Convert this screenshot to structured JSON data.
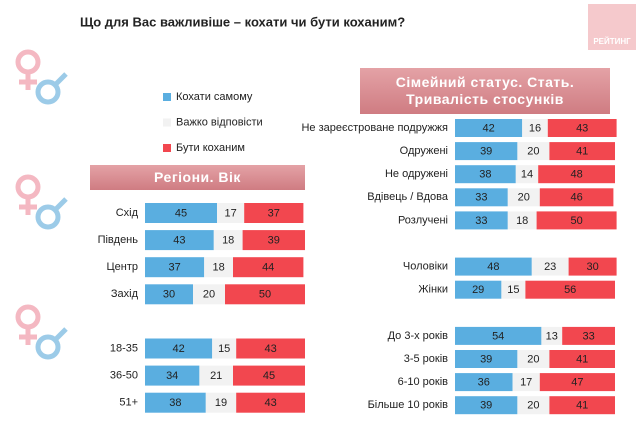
{
  "title": "Що для Вас важливіше – кохати чи бути коханим?",
  "logo": "РЕЙТИНГ",
  "chart_data": [
    {
      "type": "bar",
      "title": "Регіони. Вік",
      "categories": [
        "Схід",
        "Південь",
        "Центр",
        "Захід",
        null,
        "18-35",
        "36-50",
        "51+"
      ],
      "series": [
        {
          "name": "Кохати самому",
          "color": "#5aaee0",
          "values": [
            45,
            43,
            37,
            30,
            null,
            42,
            34,
            38
          ]
        },
        {
          "name": "Важко відповісти",
          "color": "#f2f2f2",
          "values": [
            17,
            18,
            18,
            20,
            null,
            15,
            21,
            19
          ]
        },
        {
          "name": "Бути коханим",
          "color": "#f2474f",
          "values": [
            37,
            39,
            44,
            50,
            null,
            43,
            45,
            43
          ]
        }
      ]
    },
    {
      "type": "bar",
      "title": "Сімейний статус. Стать. Тривалість стосунків",
      "categories": [
        "Не зареєстроване подружжя",
        "Одружені",
        "Не одружені",
        "Вдівець / Вдова",
        "Розлучені",
        null,
        "Чоловіки",
        "Жінки",
        null,
        "До 3-х років",
        "3-5 років",
        "6-10 років",
        "Більше 10 років"
      ],
      "series": [
        {
          "color": "#5aaee0",
          "values": [
            42,
            39,
            38,
            33,
            33,
            null,
            48,
            29,
            null,
            54,
            39,
            36,
            39
          ]
        },
        {
          "color": "#f2f2f2",
          "values": [
            16,
            20,
            14,
            20,
            18,
            null,
            23,
            15,
            null,
            13,
            20,
            17,
            20
          ]
        },
        {
          "color": "#f2474f",
          "values": [
            43,
            41,
            48,
            46,
            50,
            null,
            30,
            56,
            null,
            33,
            41,
            47,
            41
          ]
        }
      ]
    }
  ]
}
